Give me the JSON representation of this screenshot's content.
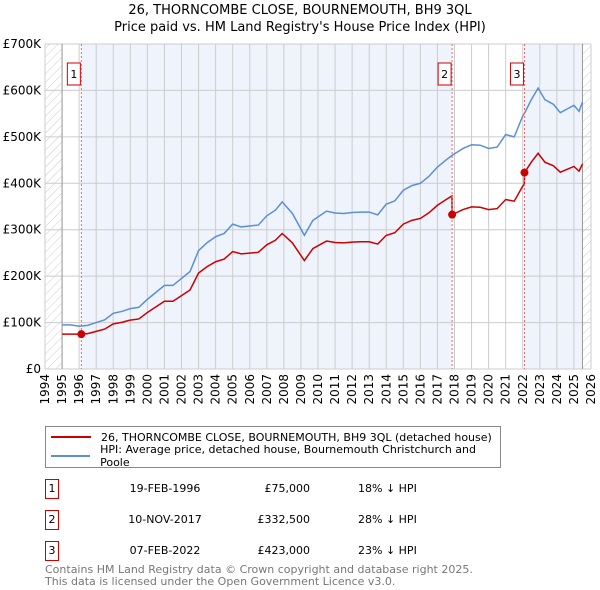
{
  "chart_data": {
    "type": "line",
    "title": "26, THORNCOMBE CLOSE, BOURNEMOUTH, BH9 3QL",
    "subtitle": "Price paid vs. HM Land Registry's House Price Index (HPI)",
    "xlim": [
      1994,
      2026
    ],
    "ylim": [
      0,
      700000
    ],
    "data_end": 2025.5,
    "x_ticks": [
      "1994",
      "1995",
      "1996",
      "1997",
      "1998",
      "1999",
      "2000",
      "2001",
      "2002",
      "2003",
      "2004",
      "2005",
      "2006",
      "2007",
      "2008",
      "2009",
      "2010",
      "2011",
      "2012",
      "2013",
      "2014",
      "2015",
      "2016",
      "2017",
      "2018",
      "2019",
      "2020",
      "2021",
      "2022",
      "2023",
      "2024",
      "2025",
      "2026"
    ],
    "y_ticks": [
      {
        "v": 0,
        "label": "£0"
      },
      {
        "v": 100000,
        "label": "£100K"
      },
      {
        "v": 200000,
        "label": "£200K"
      },
      {
        "v": 300000,
        "label": "£300K"
      },
      {
        "v": 400000,
        "label": "£400K"
      },
      {
        "v": 500000,
        "label": "£500K"
      },
      {
        "v": 600000,
        "label": "£600K"
      },
      {
        "v": 700000,
        "label": "£700K"
      }
    ],
    "colors": {
      "property": "#cc0000",
      "hpi": "#5b8fd6",
      "shade": "#eef3fc"
    },
    "hpi_series": {
      "name": "HPI: Average price, detached house, Bournemouth Christchurch and Poole",
      "x": [
        1995,
        1995.5,
        1996,
        1996.5,
        1997,
        1997.5,
        1998,
        1998.5,
        1999,
        1999.5,
        2000,
        2000.5,
        2001,
        2001.5,
        2002,
        2002.5,
        2003,
        2003.5,
        2004,
        2004.5,
        2005,
        2005.5,
        2006,
        2006.5,
        2007,
        2007.5,
        2007.9,
        2008.5,
        2009.2,
        2009.7,
        2010.5,
        2011,
        2011.5,
        2012,
        2012.5,
        2013,
        2013.5,
        2014,
        2014.5,
        2015,
        2015.5,
        2016,
        2016.5,
        2017,
        2017.5,
        2017.86,
        2018.5,
        2019,
        2019.5,
        2020,
        2020.5,
        2021,
        2021.5,
        2022,
        2022.12,
        2022.5,
        2022.9,
        2023.3,
        2023.8,
        2024.2,
        2024.6,
        2025,
        2025.3,
        2025.5
      ],
      "y": [
        95000,
        95000,
        92000,
        94000,
        100000,
        106000,
        120000,
        124000,
        130000,
        133000,
        150000,
        165000,
        180000,
        180000,
        195000,
        210000,
        255000,
        272000,
        285000,
        292000,
        312000,
        306000,
        308000,
        310000,
        330000,
        342000,
        360000,
        335000,
        288000,
        320000,
        340000,
        336000,
        335000,
        337000,
        338000,
        338000,
        332000,
        355000,
        362000,
        385000,
        395000,
        400000,
        415000,
        435000,
        450000,
        460000,
        475000,
        483000,
        482000,
        475000,
        478000,
        505000,
        500000,
        545000,
        552000,
        580000,
        605000,
        580000,
        570000,
        552000,
        560000,
        568000,
        555000,
        575000
      ]
    },
    "property_series": {
      "name": "26, THORNCOMBE CLOSE, BOURNEMOUTH, BH9 3QL (detached house)"
    },
    "sales": [
      {
        "n": "1",
        "x": 1996.13,
        "date": "19-FEB-1996",
        "price": 75000,
        "price_label": "£75,000",
        "hpi_label": "18% ↓ HPI"
      },
      {
        "n": "2",
        "x": 2017.86,
        "date": "10-NOV-2017",
        "price": 332500,
        "price_label": "£332,500",
        "hpi_label": "28% ↓ HPI"
      },
      {
        "n": "3",
        "x": 2022.1,
        "date": "07-FEB-2022",
        "price": 423000,
        "price_label": "£423,000",
        "hpi_label": "23% ↓ HPI"
      }
    ]
  },
  "legend": {
    "property": "26, THORNCOMBE CLOSE, BOURNEMOUTH, BH9 3QL (detached house)",
    "hpi": "HPI: Average price, detached house, Bournemouth Christchurch and Poole"
  },
  "footer": {
    "line1": "Contains HM Land Registry data © Crown copyright and database right 2025.",
    "line2": "This data is licensed under the Open Government Licence v3.0."
  }
}
